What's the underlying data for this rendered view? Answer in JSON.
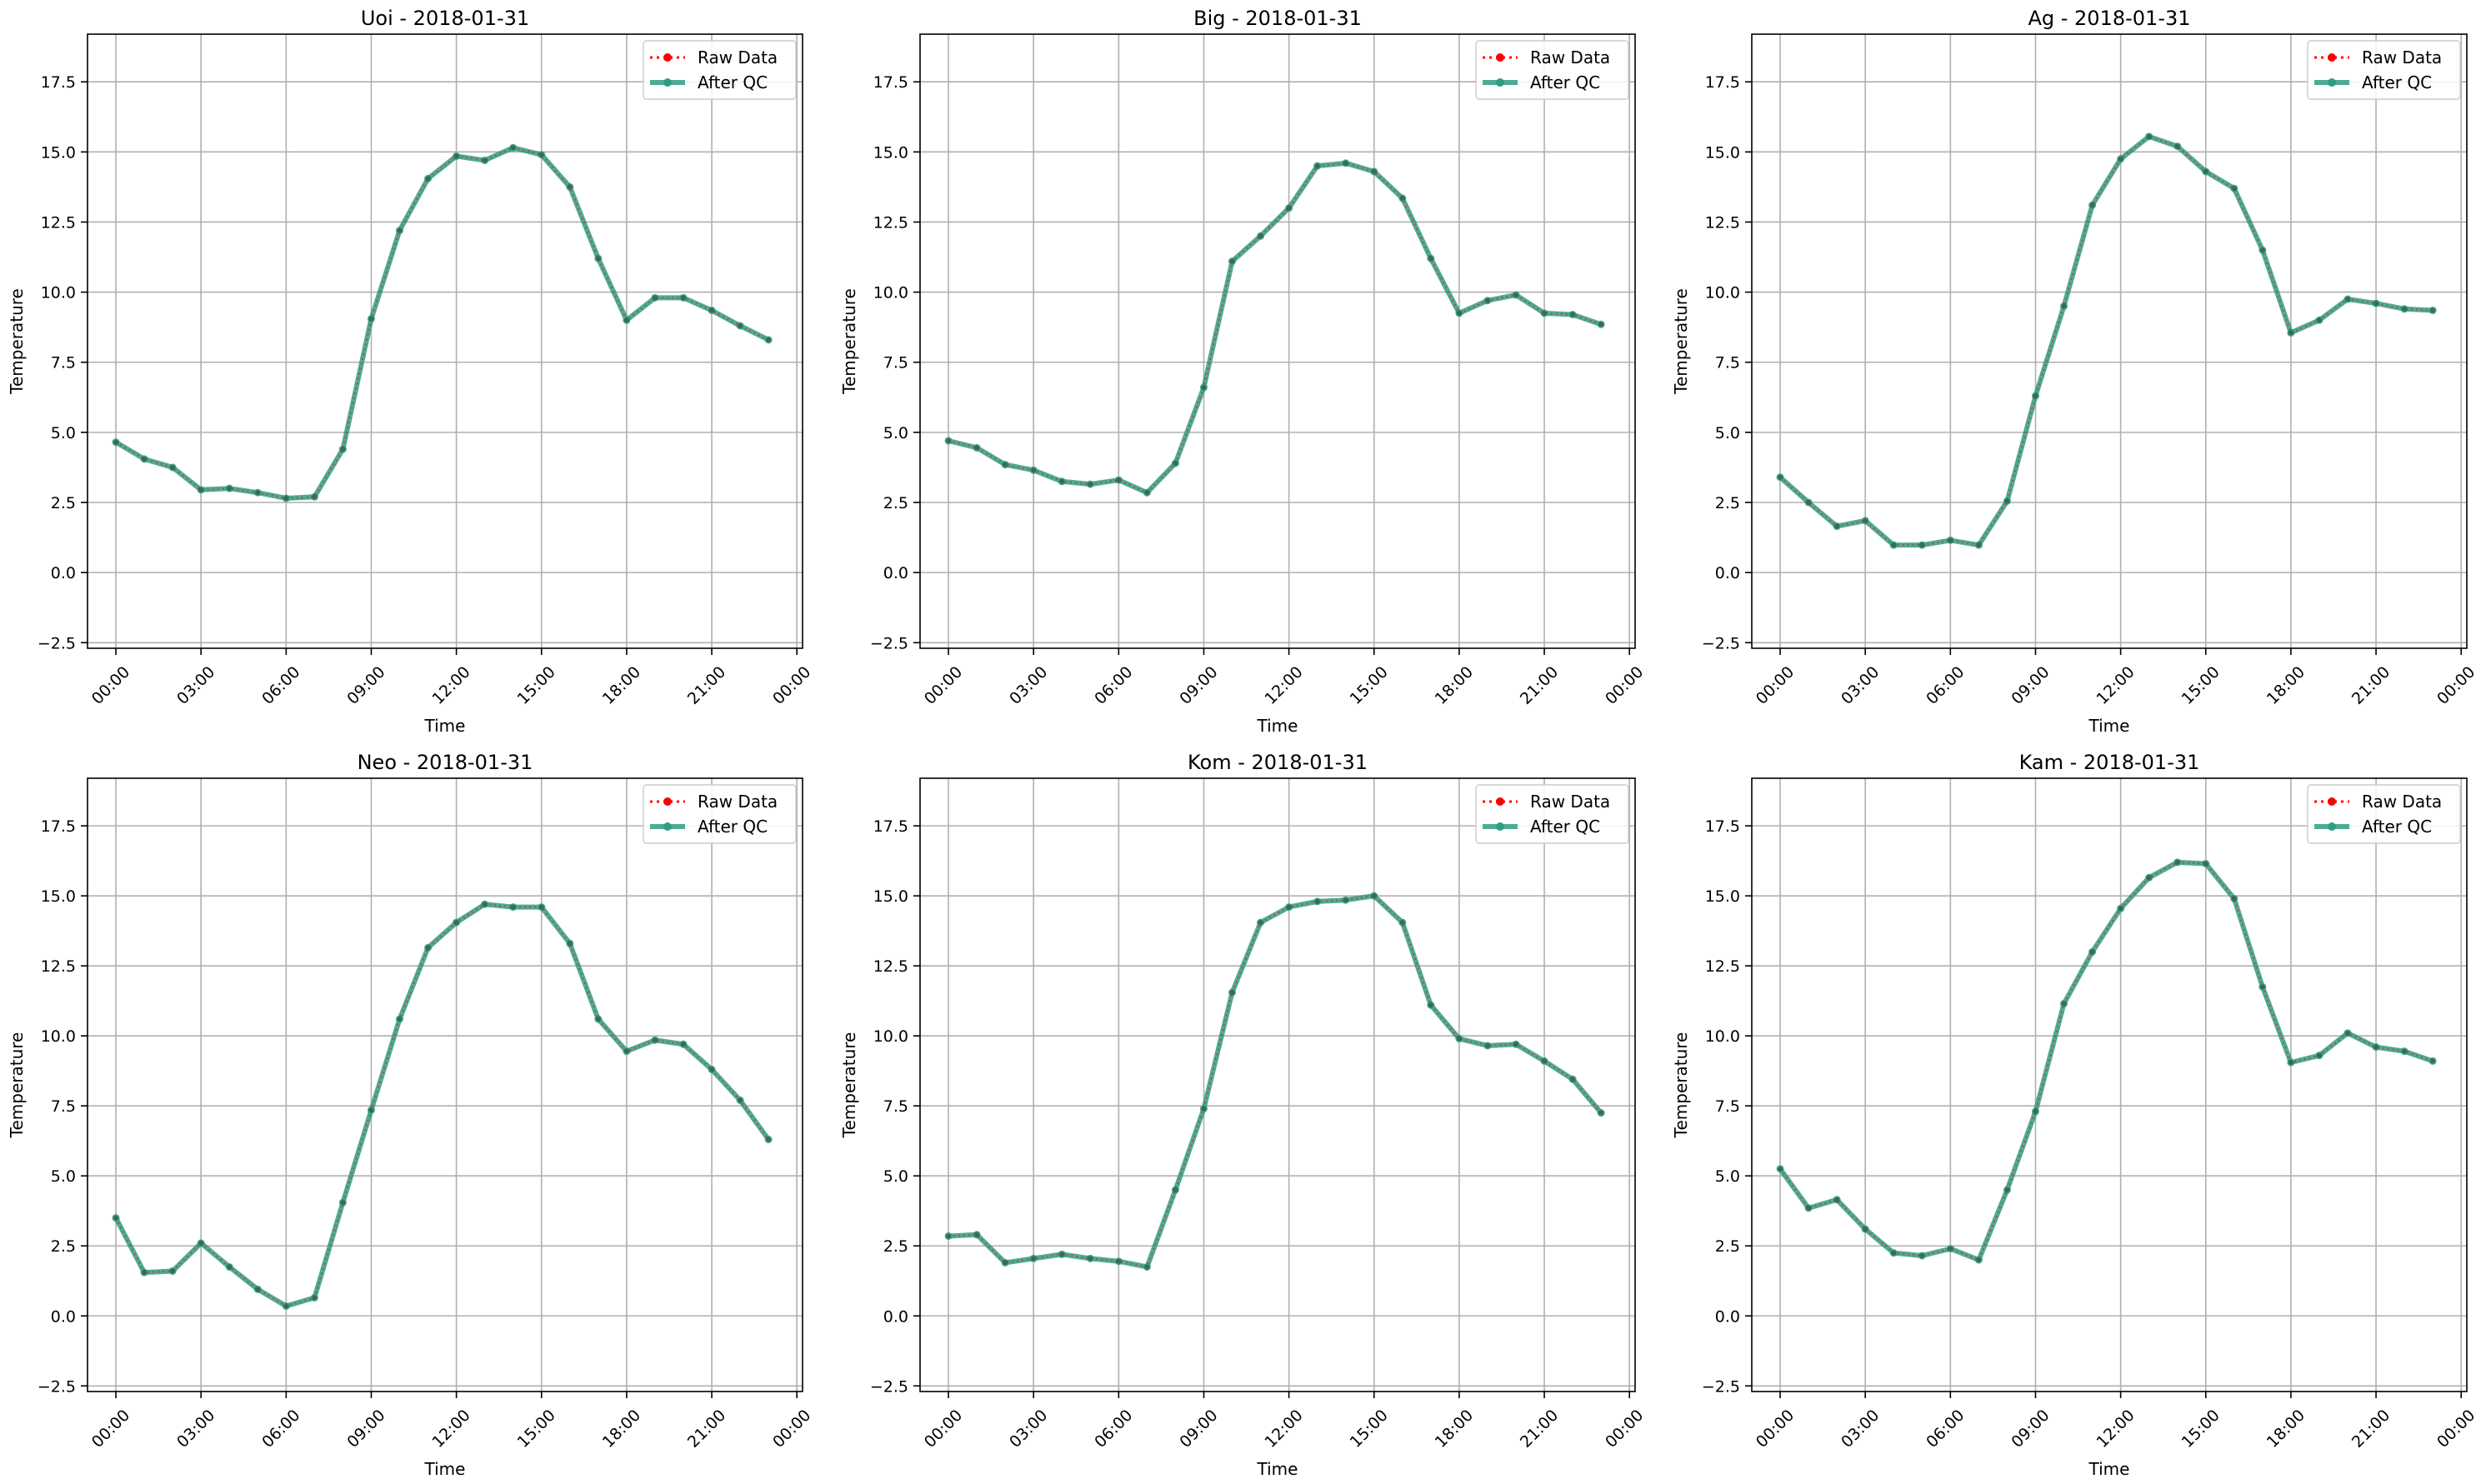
{
  "figure": {
    "background": "#ffffff"
  },
  "chart_data": [
    {
      "type": "line",
      "title": "Uoi - 2018-01-31",
      "xlabel": "Time",
      "ylabel": "Temperature",
      "xlim": [
        -1,
        24.2
      ],
      "ylim": [
        -2.7,
        19.2
      ],
      "xticks": [
        0,
        3,
        6,
        9,
        12,
        15,
        18,
        21,
        24
      ],
      "xtick_labels": [
        "00:00",
        "03:00",
        "06:00",
        "09:00",
        "12:00",
        "15:00",
        "18:00",
        "21:00",
        "00:00"
      ],
      "yticks": [
        -2.5,
        0,
        2.5,
        5,
        7.5,
        10,
        12.5,
        15,
        17.5
      ],
      "ytick_labels": [
        "−2.5",
        "0.0",
        "2.5",
        "5.0",
        "7.5",
        "10.0",
        "12.5",
        "15.0",
        "17.5"
      ],
      "grid": true,
      "legend_position": "top-right",
      "x": [
        0,
        1,
        2,
        3,
        4,
        5,
        6,
        7,
        8,
        9,
        10,
        11,
        12,
        13,
        14,
        15,
        16,
        17,
        18,
        19,
        20,
        21,
        22,
        23
      ],
      "series": [
        {
          "name": "Raw Data",
          "color": "#ff0000",
          "style": "dotted",
          "values": [
            4.65,
            4.05,
            3.75,
            2.95,
            3.0,
            2.85,
            2.65,
            2.7,
            4.4,
            9.05,
            12.2,
            14.05,
            14.85,
            14.7,
            15.15,
            14.9,
            13.75,
            11.2,
            9.0,
            9.8,
            9.8,
            9.35,
            8.8,
            8.3
          ]
        },
        {
          "name": "After QC",
          "color": "#2e9e80",
          "style": "solid",
          "values": [
            4.65,
            4.05,
            3.75,
            2.95,
            3.0,
            2.85,
            2.65,
            2.7,
            4.4,
            9.05,
            12.2,
            14.05,
            14.85,
            14.7,
            15.15,
            14.9,
            13.75,
            11.2,
            9.0,
            9.8,
            9.8,
            9.35,
            8.8,
            8.3
          ]
        }
      ]
    },
    {
      "type": "line",
      "title": "Big - 2018-01-31",
      "xlabel": "Time",
      "ylabel": "Temperature",
      "xlim": [
        -1,
        24.2
      ],
      "ylim": [
        -2.7,
        19.2
      ],
      "xticks": [
        0,
        3,
        6,
        9,
        12,
        15,
        18,
        21,
        24
      ],
      "xtick_labels": [
        "00:00",
        "03:00",
        "06:00",
        "09:00",
        "12:00",
        "15:00",
        "18:00",
        "21:00",
        "00:00"
      ],
      "yticks": [
        -2.5,
        0,
        2.5,
        5,
        7.5,
        10,
        12.5,
        15,
        17.5
      ],
      "ytick_labels": [
        "−2.5",
        "0.0",
        "2.5",
        "5.0",
        "7.5",
        "10.0",
        "12.5",
        "15.0",
        "17.5"
      ],
      "grid": true,
      "legend_position": "top-right",
      "x": [
        0,
        1,
        2,
        3,
        4,
        5,
        6,
        7,
        8,
        9,
        10,
        11,
        12,
        13,
        14,
        15,
        16,
        17,
        18,
        19,
        20,
        21,
        22,
        23
      ],
      "series": [
        {
          "name": "Raw Data",
          "color": "#ff0000",
          "style": "dotted",
          "values": [
            4.7,
            4.45,
            3.85,
            3.65,
            3.25,
            3.15,
            3.3,
            2.85,
            3.9,
            6.6,
            11.1,
            12.0,
            13.0,
            14.5,
            14.6,
            14.3,
            13.35,
            11.2,
            9.25,
            9.7,
            9.9,
            9.25,
            9.2,
            8.85
          ]
        },
        {
          "name": "After QC",
          "color": "#2e9e80",
          "style": "solid",
          "values": [
            4.7,
            4.45,
            3.85,
            3.65,
            3.25,
            3.15,
            3.3,
            2.85,
            3.9,
            6.6,
            11.1,
            12.0,
            13.0,
            14.5,
            14.6,
            14.3,
            13.35,
            11.2,
            9.25,
            9.7,
            9.9,
            9.25,
            9.2,
            8.85
          ]
        }
      ]
    },
    {
      "type": "line",
      "title": "Ag - 2018-01-31",
      "xlabel": "Time",
      "ylabel": "Temperature",
      "xlim": [
        -1,
        24.2
      ],
      "ylim": [
        -2.7,
        19.2
      ],
      "xticks": [
        0,
        3,
        6,
        9,
        12,
        15,
        18,
        21,
        24
      ],
      "xtick_labels": [
        "00:00",
        "03:00",
        "06:00",
        "09:00",
        "12:00",
        "15:00",
        "18:00",
        "21:00",
        "00:00"
      ],
      "yticks": [
        -2.5,
        0,
        2.5,
        5,
        7.5,
        10,
        12.5,
        15,
        17.5
      ],
      "ytick_labels": [
        "−2.5",
        "0.0",
        "2.5",
        "5.0",
        "7.5",
        "10.0",
        "12.5",
        "15.0",
        "17.5"
      ],
      "grid": true,
      "legend_position": "top-right",
      "x": [
        0,
        1,
        2,
        3,
        4,
        5,
        6,
        7,
        8,
        9,
        10,
        11,
        12,
        13,
        14,
        15,
        16,
        17,
        18,
        19,
        20,
        21,
        22,
        23
      ],
      "series": [
        {
          "name": "Raw Data",
          "color": "#ff0000",
          "style": "dotted",
          "values": [
            3.4,
            2.5,
            1.65,
            1.85,
            0.98,
            0.98,
            1.15,
            0.98,
            2.55,
            6.3,
            9.5,
            13.1,
            14.75,
            15.55,
            15.2,
            14.3,
            13.7,
            11.5,
            8.55,
            9.0,
            9.75,
            9.6,
            9.4,
            9.35
          ]
        },
        {
          "name": "After QC",
          "color": "#2e9e80",
          "style": "solid",
          "values": [
            3.4,
            2.5,
            1.65,
            1.85,
            0.98,
            0.98,
            1.15,
            0.98,
            2.55,
            6.3,
            9.5,
            13.1,
            14.75,
            15.55,
            15.2,
            14.3,
            13.7,
            11.5,
            8.55,
            9.0,
            9.75,
            9.6,
            9.4,
            9.35
          ]
        }
      ]
    },
    {
      "type": "line",
      "title": "Neo - 2018-01-31",
      "xlabel": "Time",
      "ylabel": "Temperature",
      "xlim": [
        -1,
        24.2
      ],
      "ylim": [
        -2.7,
        19.2
      ],
      "xticks": [
        0,
        3,
        6,
        9,
        12,
        15,
        18,
        21,
        24
      ],
      "xtick_labels": [
        "00:00",
        "03:00",
        "06:00",
        "09:00",
        "12:00",
        "15:00",
        "18:00",
        "21:00",
        "00:00"
      ],
      "yticks": [
        -2.5,
        0,
        2.5,
        5,
        7.5,
        10,
        12.5,
        15,
        17.5
      ],
      "ytick_labels": [
        "−2.5",
        "0.0",
        "2.5",
        "5.0",
        "7.5",
        "10.0",
        "12.5",
        "15.0",
        "17.5"
      ],
      "grid": true,
      "legend_position": "top-right",
      "x": [
        0,
        1,
        2,
        3,
        4,
        5,
        6,
        7,
        8,
        9,
        10,
        11,
        12,
        13,
        14,
        15,
        16,
        17,
        18,
        19,
        20,
        21,
        22,
        23
      ],
      "series": [
        {
          "name": "Raw Data",
          "color": "#ff0000",
          "style": "dotted",
          "values": [
            3.5,
            1.55,
            1.6,
            2.6,
            1.75,
            0.95,
            0.35,
            0.65,
            4.05,
            7.35,
            10.6,
            13.15,
            14.05,
            14.7,
            14.6,
            14.6,
            13.3,
            10.6,
            9.45,
            9.85,
            9.7,
            8.8,
            7.7,
            6.3
          ]
        },
        {
          "name": "After QC",
          "color": "#2e9e80",
          "style": "solid",
          "values": [
            3.5,
            1.55,
            1.6,
            2.6,
            1.75,
            0.95,
            0.35,
            0.65,
            4.05,
            7.35,
            10.6,
            13.15,
            14.05,
            14.7,
            14.6,
            14.6,
            13.3,
            10.6,
            9.45,
            9.85,
            9.7,
            8.8,
            7.7,
            6.3
          ]
        }
      ]
    },
    {
      "type": "line",
      "title": "Kom - 2018-01-31",
      "xlabel": "Time",
      "ylabel": "Temperature",
      "xlim": [
        -1,
        24.2
      ],
      "ylim": [
        -2.7,
        19.2
      ],
      "xticks": [
        0,
        3,
        6,
        9,
        12,
        15,
        18,
        21,
        24
      ],
      "xtick_labels": [
        "00:00",
        "03:00",
        "06:00",
        "09:00",
        "12:00",
        "15:00",
        "18:00",
        "21:00",
        "00:00"
      ],
      "yticks": [
        -2.5,
        0,
        2.5,
        5,
        7.5,
        10,
        12.5,
        15,
        17.5
      ],
      "ytick_labels": [
        "−2.5",
        "0.0",
        "2.5",
        "5.0",
        "7.5",
        "10.0",
        "12.5",
        "15.0",
        "17.5"
      ],
      "grid": true,
      "legend_position": "top-right",
      "x": [
        0,
        1,
        2,
        3,
        4,
        5,
        6,
        7,
        8,
        9,
        10,
        11,
        12,
        13,
        14,
        15,
        16,
        17,
        18,
        19,
        20,
        21,
        22,
        23
      ],
      "series": [
        {
          "name": "Raw Data",
          "color": "#ff0000",
          "style": "dotted",
          "values": [
            2.85,
            2.9,
            1.9,
            2.05,
            2.2,
            2.05,
            1.95,
            1.75,
            4.5,
            7.4,
            11.55,
            14.05,
            14.6,
            14.8,
            14.85,
            15.0,
            14.05,
            11.1,
            9.9,
            9.65,
            9.7,
            9.1,
            8.45,
            7.25
          ]
        },
        {
          "name": "After QC",
          "color": "#2e9e80",
          "style": "solid",
          "values": [
            2.85,
            2.9,
            1.9,
            2.05,
            2.2,
            2.05,
            1.95,
            1.75,
            4.5,
            7.4,
            11.55,
            14.05,
            14.6,
            14.8,
            14.85,
            15.0,
            14.05,
            11.1,
            9.9,
            9.65,
            9.7,
            9.1,
            8.45,
            7.25
          ]
        }
      ]
    },
    {
      "type": "line",
      "title": "Kam - 2018-01-31",
      "xlabel": "Time",
      "ylabel": "Temperature",
      "xlim": [
        -1,
        24.2
      ],
      "ylim": [
        -2.7,
        19.2
      ],
      "xticks": [
        0,
        3,
        6,
        9,
        12,
        15,
        18,
        21,
        24
      ],
      "xtick_labels": [
        "00:00",
        "03:00",
        "06:00",
        "09:00",
        "12:00",
        "15:00",
        "18:00",
        "21:00",
        "00:00"
      ],
      "yticks": [
        -2.5,
        0,
        2.5,
        5,
        7.5,
        10,
        12.5,
        15,
        17.5
      ],
      "ytick_labels": [
        "−2.5",
        "0.0",
        "2.5",
        "5.0",
        "7.5",
        "10.0",
        "12.5",
        "15.0",
        "17.5"
      ],
      "grid": true,
      "legend_position": "top-right",
      "x": [
        0,
        1,
        2,
        3,
        4,
        5,
        6,
        7,
        8,
        9,
        10,
        11,
        12,
        13,
        14,
        15,
        16,
        17,
        18,
        19,
        20,
        21,
        22,
        23
      ],
      "series": [
        {
          "name": "Raw Data",
          "color": "#ff0000",
          "style": "dotted",
          "values": [
            5.25,
            3.85,
            4.15,
            3.1,
            2.25,
            2.15,
            2.4,
            2.0,
            4.5,
            7.3,
            11.15,
            13.0,
            14.55,
            15.65,
            16.2,
            16.15,
            14.9,
            11.75,
            9.05,
            9.3,
            10.1,
            9.6,
            9.45,
            9.1
          ]
        },
        {
          "name": "After QC",
          "color": "#2e9e80",
          "style": "solid",
          "values": [
            5.25,
            3.85,
            4.15,
            3.1,
            2.25,
            2.15,
            2.4,
            2.0,
            4.5,
            7.3,
            11.15,
            13.0,
            14.55,
            15.65,
            16.2,
            16.15,
            14.9,
            11.75,
            9.05,
            9.3,
            10.1,
            9.6,
            9.45,
            9.1
          ]
        }
      ]
    }
  ]
}
